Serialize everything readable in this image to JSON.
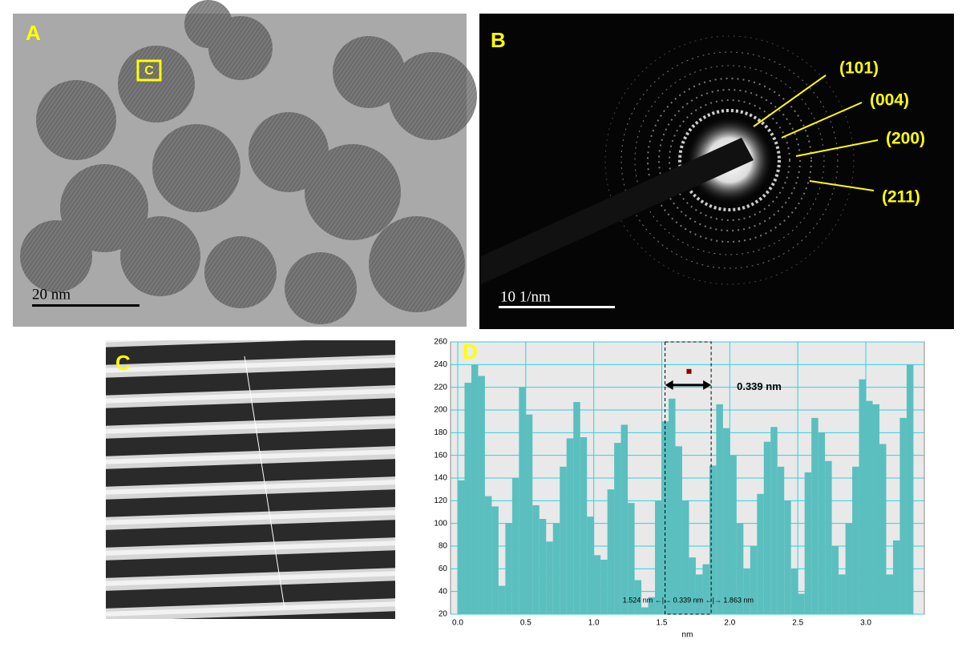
{
  "panels": {
    "a": {
      "label": "A",
      "box_label": "C",
      "scale_bar": "20 nm"
    },
    "b": {
      "label": "B",
      "rings": [
        "(101)",
        "(004)",
        "(200)",
        "(211)"
      ],
      "scale_bar": "10 1/nm"
    },
    "c": {
      "label": "C"
    }
  },
  "chart_data": {
    "type": "bar",
    "label": "D",
    "xlabel": "nm",
    "color": "#5bbfbf",
    "grid": true,
    "x": [
      0,
      0.05,
      0.1,
      0.15,
      0.2,
      0.25,
      0.3,
      0.35,
      0.4,
      0.45,
      0.5,
      0.55,
      0.6,
      0.65,
      0.7,
      0.75,
      0.8,
      0.85,
      0.9,
      0.95,
      1,
      1.05,
      1.1,
      1.15,
      1.2,
      1.25,
      1.3,
      1.35,
      1.4,
      1.45,
      1.5,
      1.55,
      1.6,
      1.65,
      1.7,
      1.75,
      1.8,
      1.85,
      1.9,
      1.95,
      2,
      2.05,
      2.1,
      2.15,
      2.2,
      2.25,
      2.3,
      2.35,
      2.4,
      2.45,
      2.5,
      2.55,
      2.6,
      2.65,
      2.7,
      2.75,
      2.8,
      2.85,
      2.9,
      2.95,
      3,
      3.05,
      3.1,
      3.15,
      3.2,
      3.25,
      3.3
    ],
    "values": [
      138,
      224,
      240,
      230,
      124,
      115,
      45,
      100,
      140,
      220,
      196,
      116,
      104,
      84,
      100,
      150,
      175,
      207,
      176,
      106,
      72,
      68,
      130,
      171,
      187,
      118,
      50,
      26,
      35,
      120,
      190,
      210,
      168,
      120,
      70,
      55,
      64,
      151,
      205,
      184,
      160,
      100,
      60,
      80,
      126,
      172,
      185,
      150,
      120,
      60,
      38,
      145,
      193,
      180,
      155,
      80,
      55,
      100,
      150,
      227,
      208,
      205,
      170,
      55,
      85,
      193,
      240
    ],
    "xlim": [
      -0.053,
      3.43
    ],
    "ylim": [
      20,
      260
    ],
    "xticks": [
      {
        "value": 0,
        "label": "0.0"
      },
      0.5,
      {
        "value": 1,
        "label": "1.0"
      },
      1.5,
      {
        "value": 2,
        "label": "2.0"
      },
      2.5,
      {
        "value": 3,
        "label": "3.0"
      }
    ],
    "yticks": [
      20,
      40,
      60,
      80,
      100,
      120,
      140,
      160,
      180,
      200,
      220,
      240,
      260
    ],
    "measure": {
      "start": 1.524,
      "end": 1.863,
      "label": "0.339 nm",
      "readout": "1.524 nm ←|→ 0.339 nm ←|→ 1.863 nm"
    }
  }
}
